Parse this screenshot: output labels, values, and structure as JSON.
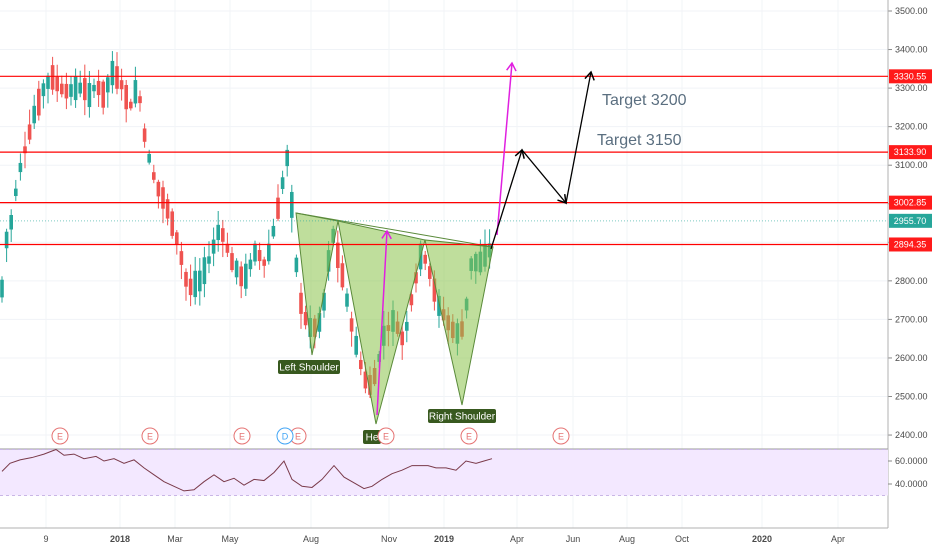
{
  "chart_data": {
    "type": "candlestick",
    "price_axis": {
      "ticks": [
        2400,
        2500,
        2600,
        2700,
        2800,
        2900,
        3000,
        3100,
        3200,
        3300,
        3400,
        3500
      ],
      "tick_labels": [
        "2400.00",
        "2500.00",
        "2600.00",
        "2700.00",
        "2800.00",
        "2900.00",
        "3000.00",
        "3100.00",
        "3200.00",
        "3300.00",
        "3400.00",
        "3500.00"
      ],
      "range": [
        2350,
        3540
      ]
    },
    "time_axis": {
      "labels": [
        "9",
        "2018",
        "Mar",
        "May",
        "Aug",
        "Nov",
        "2019",
        "Apr",
        "Jun",
        "Aug",
        "Oct",
        "2020",
        "Apr"
      ],
      "bold_labels": [
        "2018",
        "2019",
        "2020"
      ]
    },
    "resistance_levels": [
      {
        "value": 3330.55,
        "label": "3330.55"
      },
      {
        "value": 3133.9,
        "label": "3133.90"
      },
      {
        "value": 3002.85,
        "label": "3002.85"
      },
      {
        "value": 2894.35,
        "label": "2894.35"
      }
    ],
    "last_price": {
      "value": 2955.7,
      "label": "2955.70"
    },
    "annotations": {
      "targets": [
        "Target 3200",
        "Target 3150"
      ],
      "pattern_labels": [
        "Left Shoulder",
        "Head",
        "Right Shoulder"
      ],
      "head_visible_text": "He"
    },
    "events": {
      "earnings_marker": "E",
      "dividend_marker": "D"
    },
    "rsi": {
      "ticks": [
        40,
        60
      ],
      "tick_labels": [
        "40.0000",
        "60.0000"
      ],
      "range": [
        30,
        72
      ]
    },
    "colors": {
      "up": "#26a69a",
      "down": "#ef5350",
      "level_line": "#ff0000",
      "level_label_bg": "#ff1a1a",
      "last_price_bg": "#26a69a",
      "pattern_fill": "#8bc34a",
      "pattern_stroke": "#5a8a3a",
      "magenta_arrow": "#e020e0",
      "black_arrow": "#000000",
      "label_bg": "#38591f",
      "rsi_band": "#f3e8ff",
      "rsi_line": "#7a3a4a"
    }
  }
}
